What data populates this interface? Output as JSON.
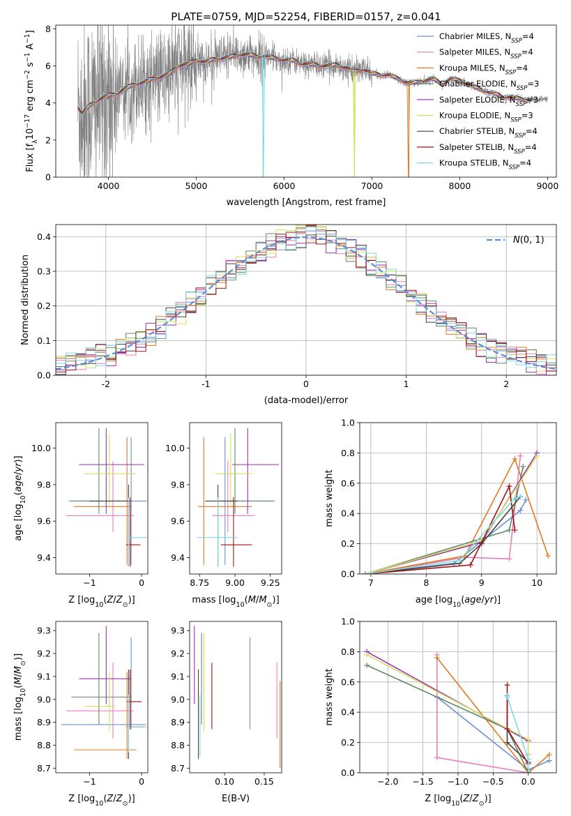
{
  "chart_data": [
    {
      "id": "spectrum",
      "type": "line",
      "title": "PLATE=0759, MJD=52254, FIBERID=0157, z=0.041",
      "xlabel": "wavelength [Angstrom, rest frame]",
      "ylabel": "Flux [f_λ10^-17 erg cm^-2 s^-1 A^-1]",
      "xlim": [
        3400,
        9100
      ],
      "ylim": [
        0,
        8.2
      ],
      "xticks": [
        4000,
        5000,
        6000,
        7000,
        8000,
        9000
      ],
      "yticks": [
        0,
        2,
        4,
        6,
        8
      ],
      "grid": false,
      "legend_position": "upper-right",
      "data_series": {
        "name": "",
        "color": "#808080",
        "x": [
          3650,
          9000
        ]
      },
      "models": [
        {
          "name": "Chabrier MILES, N_SSP=4",
          "label_main": "Chabrier MILES, N",
          "label_sub": "SSP",
          "label_tail": "=4",
          "color": "#6a8ed8"
        },
        {
          "name": "Salpeter MILES, N_SSP=4",
          "label_main": "Salpeter MILES, N",
          "label_sub": "SSP",
          "label_tail": "=4",
          "color": "#e87dbd"
        },
        {
          "name": "Kroupa MILES, N_SSP=4",
          "label_main": "Kroupa MILES, N",
          "label_sub": "SSP",
          "label_tail": "=4",
          "color": "#e07a20"
        },
        {
          "name": "Chabrier ELODIE, N_SSP=3",
          "label_main": "Chabrier ELODIE, N",
          "label_sub": "SSP",
          "label_tail": "=3",
          "color": "#5e8a6a"
        },
        {
          "name": "Salpeter ELODIE, N_SSP=3",
          "label_main": "Salpeter ELODIE, N",
          "label_sub": "SSP",
          "label_tail": "=3",
          "color": "#9b2fb0"
        },
        {
          "name": "Kroupa ELODIE, N_SSP=3",
          "label_main": "Kroupa ELODIE, N",
          "label_sub": "SSP",
          "label_tail": "=3",
          "color": "#d4e05a"
        },
        {
          "name": "Chabrier STELIB, N_SSP=4",
          "label_main": "Chabrier STELIB, N",
          "label_sub": "SSP",
          "label_tail": "=4",
          "color": "#404040"
        },
        {
          "name": "Salpeter STELIB, N_SSP=4",
          "label_main": "Salpeter STELIB, N",
          "label_sub": "SSP",
          "label_tail": "=4",
          "color": "#a01010"
        },
        {
          "name": "Kroupa STELIB, N_SSP=4",
          "label_main": "Kroupa STELIB, N",
          "label_sub": "SSP",
          "label_tail": "=4",
          "color": "#80d8e0"
        }
      ],
      "model_curve": {
        "x": [
          3650,
          3700,
          3750,
          3800,
          3900,
          4000,
          4100,
          4200,
          4300,
          4400,
          4500,
          4600,
          4700,
          4800,
          4900,
          5000,
          5100,
          5200,
          5300,
          5400,
          5500,
          5600,
          5700,
          5800,
          5900,
          6000,
          6100,
          6200,
          6300,
          6400,
          6500,
          6600,
          6700,
          6800,
          6900,
          7000,
          7100,
          7200,
          7300,
          7400,
          7500,
          7600,
          7700,
          7800,
          7900,
          8000,
          8100,
          8200,
          8300,
          8400,
          8500,
          8600,
          8700,
          8800
        ],
        "y": [
          3.8,
          3.4,
          3.7,
          3.9,
          4.2,
          4.4,
          4.5,
          4.8,
          5.0,
          5.1,
          5.3,
          5.4,
          5.6,
          6.0,
          6.1,
          6.3,
          6.2,
          6.35,
          6.4,
          6.5,
          6.6,
          6.6,
          6.5,
          6.5,
          6.4,
          6.3,
          6.3,
          6.1,
          6.1,
          6.0,
          6.0,
          6.05,
          5.9,
          5.7,
          5.8,
          5.6,
          5.5,
          5.5,
          5.3,
          5.1,
          5.1,
          5.2,
          5.3,
          5.0,
          5.3,
          5.2,
          5.0,
          4.8,
          4.6,
          4.5,
          4.3,
          4.3,
          4.2,
          4.2
        ]
      }
    },
    {
      "id": "residuals",
      "type": "line",
      "xlabel": "(data-model)/error",
      "ylabel": "Normed distribution",
      "xlim": [
        -2.5,
        2.5
      ],
      "ylim": [
        0,
        0.435
      ],
      "xticks": [
        -2,
        -1,
        0,
        1,
        2
      ],
      "yticks": [
        0.0,
        0.1,
        0.2,
        0.3,
        0.4
      ],
      "grid": true,
      "legend_position": "upper-right",
      "legend_label": "N(0,1)",
      "gaussian": {
        "mean": 0,
        "sigma": 1,
        "color": "#5a8ad8"
      },
      "bin_width": 0.1
    },
    {
      "id": "age_vs_Z",
      "type": "scatter",
      "xlabel": "Z [log10(Z/Z⊙)]",
      "ylabel": "age [log10(age/yr)]",
      "xlim": [
        -1.65,
        0.12
      ],
      "ylim": [
        9.31,
        10.14
      ],
      "xticks": [
        -1,
        0
      ],
      "yticks": [
        9.4,
        9.6,
        9.8,
        10.0
      ],
      "points": [
        {
          "x": -0.2,
          "y": 9.71,
          "xlo": -1.4,
          "xhi": 0.1,
          "ylo": 9.36,
          "yhi": 10.06,
          "color": "#6a8ed8"
        },
        {
          "x": -0.55,
          "y": 9.63,
          "xlo": -1.45,
          "xhi": -0.15,
          "ylo": 9.54,
          "yhi": 9.93,
          "color": "#e87dbd"
        },
        {
          "x": -0.28,
          "y": 9.68,
          "xlo": -1.3,
          "xhi": -0.2,
          "ylo": 9.36,
          "yhi": 10.06,
          "color": "#e07a20"
        },
        {
          "x": -0.82,
          "y": 9.71,
          "xlo": -1.35,
          "xhi": -0.2,
          "ylo": 9.64,
          "yhi": 10.11,
          "color": "#5e8a6a"
        },
        {
          "x": -0.68,
          "y": 9.91,
          "xlo": -1.2,
          "xhi": 0.05,
          "ylo": 9.64,
          "yhi": 10.11,
          "color": "#9b2fb0"
        },
        {
          "x": -0.62,
          "y": 9.86,
          "xlo": -1.1,
          "xhi": -0.1,
          "ylo": 9.68,
          "yhi": 10.08,
          "color": "#d4e05a"
        },
        {
          "x": -0.25,
          "y": 9.71,
          "xlo": -1.0,
          "xhi": -0.2,
          "ylo": 9.35,
          "yhi": 9.8,
          "color": "#404040"
        },
        {
          "x": -0.22,
          "y": 9.47,
          "xlo": -0.3,
          "xhi": -0.02,
          "ylo": 9.35,
          "yhi": 9.73,
          "color": "#a01010"
        },
        {
          "x": -0.25,
          "y": 9.51,
          "xlo": -0.3,
          "xhi": 0.1,
          "ylo": 9.35,
          "yhi": 9.73,
          "color": "#80d8e0"
        }
      ]
    },
    {
      "id": "age_vs_mass",
      "type": "scatter",
      "xlabel": "mass [log10(M/M⊙)]",
      "ylabel": "",
      "xlim": [
        8.68,
        9.33
      ],
      "ylim": [
        9.31,
        10.14
      ],
      "xticks": [
        8.75,
        9.0,
        9.25
      ],
      "yticks": [
        9.4,
        9.6,
        9.8,
        10.0
      ],
      "points": [
        {
          "x": 8.93,
          "y": 9.71,
          "xlo": 8.87,
          "xhi": 9.27,
          "ylo": 9.36,
          "yhi": 10.06,
          "color": "#6a8ed8"
        },
        {
          "x": 8.95,
          "y": 9.63,
          "xlo": 8.84,
          "xhi": 9.14,
          "ylo": 9.54,
          "yhi": 9.93,
          "color": "#e87dbd"
        },
        {
          "x": 8.78,
          "y": 9.68,
          "xlo": 8.74,
          "xhi": 9.12,
          "ylo": 9.36,
          "yhi": 10.06,
          "color": "#e07a20"
        },
        {
          "x": 9.0,
          "y": 9.71,
          "xlo": 8.89,
          "xhi": 9.28,
          "ylo": 9.64,
          "yhi": 10.11,
          "color": "#5e8a6a"
        },
        {
          "x": 9.09,
          "y": 9.91,
          "xlo": 8.98,
          "xhi": 9.31,
          "ylo": 9.64,
          "yhi": 10.11,
          "color": "#9b2fb0"
        },
        {
          "x": 8.97,
          "y": 9.86,
          "xlo": 8.86,
          "xhi": 9.12,
          "ylo": 9.68,
          "yhi": 10.08,
          "color": "#d4e05a"
        },
        {
          "x": 8.88,
          "y": 9.71,
          "xlo": 8.79,
          "xhi": 9.02,
          "ylo": 9.35,
          "yhi": 9.8,
          "color": "#404040"
        },
        {
          "x": 8.99,
          "y": 9.47,
          "xlo": 8.9,
          "xhi": 9.12,
          "ylo": 9.35,
          "yhi": 9.73,
          "color": "#a01010"
        },
        {
          "x": 8.88,
          "y": 9.51,
          "xlo": 8.73,
          "xhi": 9.02,
          "ylo": 9.35,
          "yhi": 9.73,
          "color": "#80d8e0"
        }
      ]
    },
    {
      "id": "massweight_vs_age",
      "type": "line",
      "xlabel": "age [log10(age/yr)]",
      "ylabel": "mass weight",
      "xlim": [
        6.8,
        10.35
      ],
      "ylim": [
        0,
        1.0
      ],
      "xticks": [
        7,
        8,
        9,
        10
      ],
      "yticks": [
        0.0,
        0.2,
        0.4,
        0.6,
        0.8,
        1.0
      ],
      "grid": true,
      "series": [
        {
          "color": "#6a8ed8",
          "x": [
            6.9,
            8.5,
            9.7,
            9.8
          ],
          "y": [
            0.0,
            0.07,
            0.42,
            0.49
          ]
        },
        {
          "color": "#e87dbd",
          "x": [
            6.9,
            8.7,
            9.5,
            9.7
          ],
          "y": [
            0.0,
            0.11,
            0.1,
            0.78
          ]
        },
        {
          "color": "#e07a20",
          "x": [
            6.9,
            8.7,
            9.6,
            10.2
          ],
          "y": [
            0.0,
            0.12,
            0.76,
            0.12
          ]
        },
        {
          "color": "#5e8a6a",
          "x": [
            6.9,
            9.5,
            9.75
          ],
          "y": [
            0.0,
            0.29,
            0.71
          ]
        },
        {
          "color": "#9b2fb0",
          "x": [
            6.9,
            9.0,
            10.0
          ],
          "y": [
            0.0,
            0.21,
            0.8
          ]
        },
        {
          "color": "#d4e05a",
          "x": [
            6.9,
            9.0,
            10.0
          ],
          "y": [
            0.0,
            0.22,
            0.78
          ]
        },
        {
          "color": "#404040",
          "x": [
            6.9,
            8.6,
            9.0,
            9.7
          ],
          "y": [
            0.0,
            0.07,
            0.2,
            0.51
          ]
        },
        {
          "color": "#a01010",
          "x": [
            6.9,
            8.8,
            9.5,
            9.6
          ],
          "y": [
            0.0,
            0.06,
            0.58,
            0.29
          ]
        },
        {
          "color": "#80d8e0",
          "x": [
            6.9,
            8.6,
            9.6,
            9.7
          ],
          "y": [
            0.0,
            0.09,
            0.5,
            0.51
          ]
        }
      ]
    },
    {
      "id": "mass_vs_Z",
      "type": "scatter",
      "xlabel": "Z [log10(Z/Z⊙)]",
      "ylabel": "mass [log10(M/M⊙)]",
      "xlim": [
        -1.65,
        0.12
      ],
      "ylim": [
        8.68,
        9.34
      ],
      "xticks": [
        -1,
        0
      ],
      "yticks": [
        8.7,
        8.8,
        8.9,
        9.0,
        9.1,
        9.2,
        9.3
      ],
      "points": [
        {
          "x": -0.2,
          "y": 8.89,
          "xlo": -1.55,
          "xhi": 0.08,
          "ylo": 8.87,
          "yhi": 9.27,
          "color": "#6a8ed8"
        },
        {
          "x": -0.55,
          "y": 8.95,
          "xlo": -1.45,
          "xhi": -0.15,
          "ylo": 8.83,
          "yhi": 9.16,
          "color": "#e87dbd"
        },
        {
          "x": -0.28,
          "y": 8.78,
          "xlo": -1.3,
          "xhi": -0.1,
          "ylo": 8.74,
          "yhi": 9.12,
          "color": "#e07a20"
        },
        {
          "x": -0.82,
          "y": 9.01,
          "xlo": -1.35,
          "xhi": -0.2,
          "ylo": 8.89,
          "yhi": 9.29,
          "color": "#5e8a6a"
        },
        {
          "x": -0.68,
          "y": 9.09,
          "xlo": -1.2,
          "xhi": -0.2,
          "ylo": 8.98,
          "yhi": 9.32,
          "color": "#9b2fb0"
        },
        {
          "x": -0.62,
          "y": 8.97,
          "xlo": -1.1,
          "xhi": -0.5,
          "ylo": 8.86,
          "yhi": 9.12,
          "color": "#d4e05a"
        },
        {
          "x": -0.25,
          "y": 8.88,
          "xlo": -0.3,
          "xhi": 0.05,
          "ylo": 8.74,
          "yhi": 9.13,
          "color": "#404040"
        },
        {
          "x": -0.22,
          "y": 8.99,
          "xlo": -0.28,
          "xhi": 0.0,
          "ylo": 8.87,
          "yhi": 9.13,
          "color": "#a01010"
        },
        {
          "x": -0.25,
          "y": 8.88,
          "xlo": -0.3,
          "xhi": 0.1,
          "ylo": 8.77,
          "yhi": 9.02,
          "color": "#80d8e0"
        }
      ]
    },
    {
      "id": "mass_vs_ebv",
      "type": "scatter",
      "xlabel": "E(B-V)",
      "ylabel": "",
      "xlim": [
        0.056,
        0.172
      ],
      "ylim": [
        8.68,
        9.34
      ],
      "xticks": [
        0.1,
        0.15
      ],
      "yticks": [
        8.7,
        8.8,
        8.9,
        9.0,
        9.1,
        9.2,
        9.3
      ],
      "bars": [
        {
          "x": 0.132,
          "ylo": 8.87,
          "yhi": 9.27,
          "color": "#6a8ed8"
        },
        {
          "x": 0.166,
          "ylo": 8.83,
          "yhi": 9.16,
          "color": "#e87dbd"
        },
        {
          "x": 0.17,
          "ylo": 8.7,
          "yhi": 9.08,
          "color": "#e07a20"
        },
        {
          "x": 0.071,
          "ylo": 8.89,
          "yhi": 9.29,
          "color": "#5e8a6a"
        },
        {
          "x": 0.062,
          "ylo": 8.98,
          "yhi": 9.32,
          "color": "#9b2fb0"
        },
        {
          "x": 0.074,
          "ylo": 8.86,
          "yhi": 9.29,
          "color": "#d4e05a"
        },
        {
          "x": 0.067,
          "ylo": 8.74,
          "yhi": 9.13,
          "color": "#404040"
        },
        {
          "x": 0.084,
          "ylo": 8.87,
          "yhi": 9.16,
          "color": "#a01010"
        },
        {
          "x": 0.069,
          "ylo": 8.75,
          "yhi": 9.02,
          "color": "#80d8e0"
        }
      ]
    },
    {
      "id": "massweight_vs_Z",
      "type": "line",
      "xlabel": "Z [log10(Z/Z⊙)]",
      "ylabel": "mass weight",
      "xlim": [
        -2.4,
        0.4
      ],
      "ylim": [
        0,
        1.0
      ],
      "xticks": [
        -2.0,
        -1.5,
        -1.0,
        -0.5,
        0.0
      ],
      "yticks": [
        0.0,
        0.2,
        0.4,
        0.6,
        0.8,
        1.0
      ],
      "grid": true,
      "series": [
        {
          "color": "#6a8ed8",
          "x": [
            -1.3,
            0.0,
            0.3
          ],
          "y": [
            0.5,
            0.02,
            0.08
          ]
        },
        {
          "color": "#e87dbd",
          "x": [
            -1.3,
            -1.3,
            0.0,
            0.0
          ],
          "y": [
            0.78,
            0.1,
            0.0,
            0.12
          ]
        },
        {
          "color": "#e07a20",
          "x": [
            -1.3,
            0.0,
            0.3
          ],
          "y": [
            0.76,
            0.0,
            0.12
          ]
        },
        {
          "color": "#5e8a6a",
          "x": [
            -2.3,
            -0.3,
            0.0
          ],
          "y": [
            0.71,
            0.29,
            0.0
          ]
        },
        {
          "color": "#9b2fb0",
          "x": [
            -2.3,
            0.0,
            0.0
          ],
          "y": [
            0.8,
            0.21,
            0.0
          ]
        },
        {
          "color": "#d4e05a",
          "x": [
            -2.3,
            0.0,
            0.0
          ],
          "y": [
            0.78,
            0.22,
            0.0
          ]
        },
        {
          "color": "#404040",
          "x": [
            -0.3,
            -0.3,
            0.0,
            0.0
          ],
          "y": [
            0.51,
            0.2,
            0.07,
            0.0
          ]
        },
        {
          "color": "#a01010",
          "x": [
            -0.3,
            -0.3,
            0.0,
            0.0
          ],
          "y": [
            0.58,
            0.29,
            0.06,
            0.0
          ]
        },
        {
          "color": "#80d8e0",
          "x": [
            -0.3,
            -0.3,
            0.0,
            0.0
          ],
          "y": [
            0.51,
            0.5,
            0.09,
            0.0
          ]
        }
      ]
    }
  ]
}
